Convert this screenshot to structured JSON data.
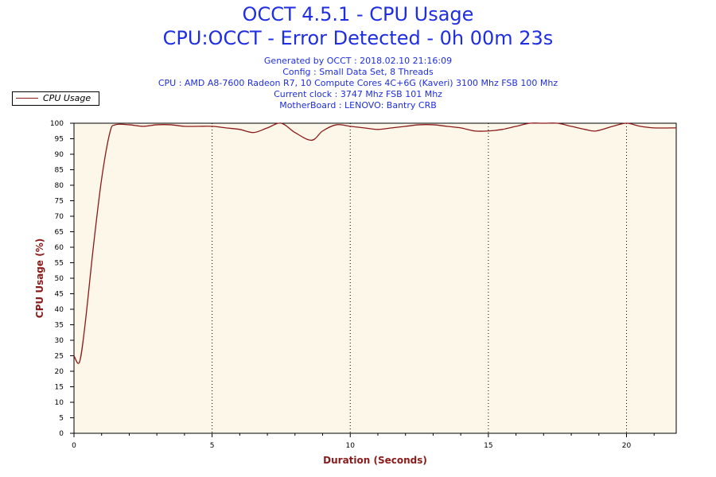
{
  "chart_data": {
    "type": "line",
    "title": "OCCT 4.5.1 - CPU Usage",
    "subtitle": "CPU:OCCT - Error Detected - 0h 00m 23s",
    "info_lines": [
      "Generated by OCCT : 2018.02.10 21:16:09",
      "Config : Small Data Set, 8 Threads",
      "CPU : AMD A8-7600 Radeon R7, 10 Compute Cores 4C+6G (Kaveri) 3100 Mhz FSB 100 Mhz",
      "Current clock : 3747 Mhz FSB 101 Mhz",
      "MotherBoard : LENOVO: Bantry CRB"
    ],
    "xlabel": "Duration (Seconds)",
    "ylabel": "CPU Usage (%)",
    "xlim": [
      0,
      21.8
    ],
    "ylim": [
      0,
      100
    ],
    "x_ticks": [
      0,
      5,
      10,
      15,
      20
    ],
    "y_ticks": [
      0,
      5,
      10,
      15,
      20,
      25,
      30,
      35,
      40,
      45,
      50,
      55,
      60,
      65,
      70,
      75,
      80,
      85,
      90,
      95,
      100
    ],
    "grid": "vertical dotted at x ticks",
    "legend": "top-left",
    "colors": {
      "line": "#8b1a1a",
      "plot_bg": "#fdf7e9",
      "title": "#1f2ee0"
    },
    "series": [
      {
        "name": "CPU Usage",
        "x": [
          0,
          0.2,
          0.4,
          0.7,
          1.0,
          1.3,
          1.5,
          2.0,
          2.5,
          3.0,
          3.5,
          4.0,
          4.5,
          5.0,
          5.5,
          6.0,
          6.5,
          7.0,
          7.5,
          8.0,
          8.6,
          9.0,
          9.5,
          10.0,
          10.5,
          11.0,
          11.5,
          12.0,
          12.5,
          13.0,
          13.5,
          14.0,
          14.5,
          15.0,
          15.5,
          16.0,
          16.5,
          17.0,
          17.5,
          18.0,
          18.5,
          18.9,
          19.5,
          20.0,
          20.5,
          21.0,
          21.8
        ],
        "values": [
          25,
          23,
          35,
          60,
          82,
          97,
          99.5,
          99.5,
          99,
          99.5,
          99.5,
          99,
          99,
          99,
          98.5,
          98,
          97,
          98.5,
          100,
          97,
          94.5,
          97.5,
          99.5,
          99,
          98.5,
          98,
          98.5,
          99,
          99.5,
          99.5,
          99,
          98.5,
          97.5,
          97.5,
          98,
          99,
          100,
          100,
          100,
          99,
          98,
          97.5,
          99,
          100,
          99,
          98.5,
          98.5
        ]
      }
    ]
  }
}
